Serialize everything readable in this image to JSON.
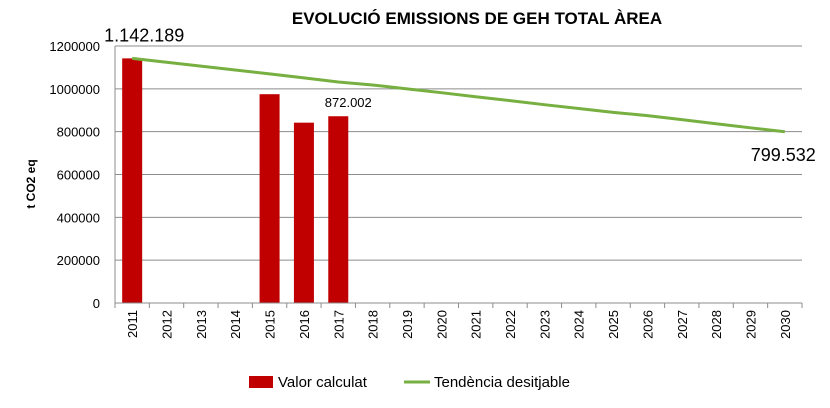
{
  "chart_data": {
    "type": "bar",
    "title": "EVOLUCIÓ EMISSIONS DE GEH TOTAL ÀREA",
    "ylabel": "t CO2 eq",
    "xlabel": "",
    "ylim": [
      0,
      1200000
    ],
    "yticks": [
      "0",
      "200000",
      "400000",
      "600000",
      "800000",
      "1000000",
      "1200000"
    ],
    "ytick_values": [
      0,
      200000,
      400000,
      600000,
      800000,
      1000000,
      1200000
    ],
    "grid": true,
    "legend_position": "bottom",
    "categories": [
      "2011",
      "2012",
      "2013",
      "2014",
      "2015",
      "2016",
      "2017",
      "2018",
      "2019",
      "2020",
      "2021",
      "2022",
      "2023",
      "2024",
      "2025",
      "2026",
      "2027",
      "2028",
      "2029",
      "2030"
    ],
    "series": [
      {
        "name": "Valor calculat",
        "type": "bar",
        "color": "#C00000",
        "values": [
          1142189,
          null,
          null,
          null,
          975000,
          842000,
          872002,
          null,
          null,
          null,
          null,
          null,
          null,
          null,
          null,
          null,
          null,
          null,
          null,
          null
        ]
      },
      {
        "name": "Tendència desitjable",
        "type": "line",
        "color": "#77B041",
        "values": [
          1142189,
          1124000,
          1106000,
          1088000,
          1070000,
          1051000,
          1032000,
          1018000,
          1000000,
          982000,
          963000,
          945000,
          926000,
          908000,
          890000,
          875000,
          856000,
          837000,
          818000,
          799532
        ]
      }
    ],
    "annotations": [
      {
        "text": "1.142.189",
        "category": "2011",
        "series": "Tendència desitjable"
      },
      {
        "text": "872.002",
        "category": "2017",
        "series": "Valor calculat"
      },
      {
        "text": "799.532",
        "category": "2030",
        "series": "Tendència desitjable"
      }
    ]
  }
}
